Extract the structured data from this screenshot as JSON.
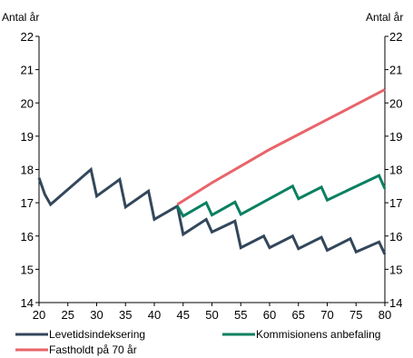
{
  "chart_data": {
    "type": "line",
    "left_axis_title": "Antal år",
    "right_axis_title": "Antal år",
    "ylim": [
      14,
      22
    ],
    "y_ticks": [
      14,
      15,
      16,
      17,
      18,
      19,
      20,
      21,
      22
    ],
    "xlim": [
      20,
      80
    ],
    "x_ticks": [
      20,
      25,
      30,
      35,
      40,
      45,
      50,
      55,
      60,
      65,
      70,
      75,
      80
    ],
    "legend_position": "bottom",
    "series": [
      {
        "name": "Levetidsindeksering",
        "color": "#33475B",
        "points": [
          [
            20,
            17.75
          ],
          [
            21,
            17.25
          ],
          [
            22,
            16.95
          ],
          [
            29,
            18.0
          ],
          [
            30,
            17.2
          ],
          [
            34,
            17.7
          ],
          [
            35,
            16.87
          ],
          [
            39,
            17.35
          ],
          [
            40,
            16.5
          ],
          [
            44,
            16.9
          ],
          [
            45,
            16.05
          ],
          [
            49,
            16.5
          ],
          [
            50,
            16.12
          ],
          [
            54,
            16.45
          ],
          [
            55,
            15.65
          ],
          [
            59,
            16.0
          ],
          [
            60,
            15.65
          ],
          [
            64,
            16.0
          ],
          [
            65,
            15.62
          ],
          [
            69,
            15.96
          ],
          [
            70,
            15.57
          ],
          [
            74,
            15.92
          ],
          [
            75,
            15.52
          ],
          [
            79,
            15.82
          ],
          [
            80,
            15.45
          ]
        ]
      },
      {
        "name": "Kommisionens anbefaling",
        "color": "#0A8060",
        "points": [
          [
            44,
            16.9
          ],
          [
            45,
            16.6
          ],
          [
            49,
            17.0
          ],
          [
            50,
            16.63
          ],
          [
            54,
            17.02
          ],
          [
            55,
            16.65
          ],
          [
            64,
            17.5
          ],
          [
            65,
            17.12
          ],
          [
            69,
            17.47
          ],
          [
            70,
            17.08
          ],
          [
            79,
            17.82
          ],
          [
            80,
            17.42
          ]
        ]
      },
      {
        "name": "Fastholdt på 70 år",
        "color": "#E8646A",
        "points": [
          [
            44,
            16.95
          ],
          [
            50,
            17.6
          ],
          [
            55,
            18.1
          ],
          [
            60,
            18.6
          ],
          [
            65,
            19.05
          ],
          [
            70,
            19.5
          ],
          [
            75,
            19.95
          ],
          [
            80,
            20.4
          ]
        ]
      }
    ]
  }
}
